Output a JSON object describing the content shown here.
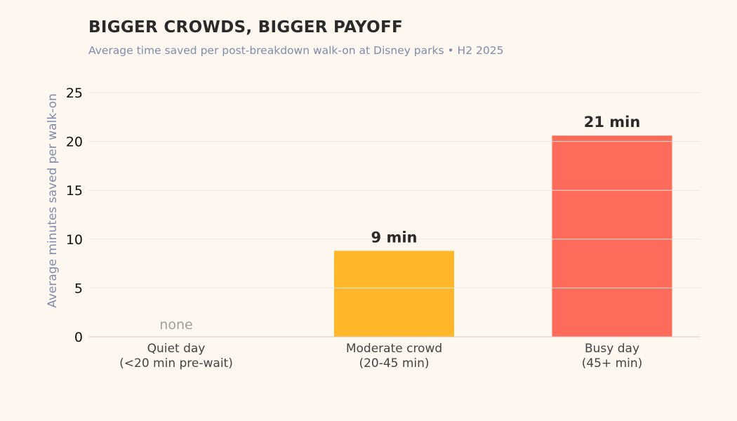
{
  "chart_data": {
    "type": "bar",
    "title": "BIGGER CROWDS, BIGGER PAYOFF",
    "subtitle": "Average time saved per post-breakdown walk-on at Disney parks  •  H2 2025",
    "xlabel": "",
    "ylabel": "Average minutes saved per walk-on",
    "ylim": [
      0,
      25
    ],
    "yticks": [
      "0",
      "5",
      "10",
      "15",
      "20",
      "25"
    ],
    "grid": true,
    "categories": [
      [
        "Quiet day",
        "(<20 min pre-wait)"
      ],
      [
        "Moderate crowd",
        "(20-45 min)"
      ],
      [
        "Busy day",
        "(45+ min)"
      ]
    ],
    "values": [
      0,
      8.8,
      20.6
    ],
    "data_labels": [
      "none",
      "9 min",
      "21 min"
    ],
    "colors": [
      "#9e9e9e",
      "#ffb628",
      "#ff6b5a"
    ]
  }
}
